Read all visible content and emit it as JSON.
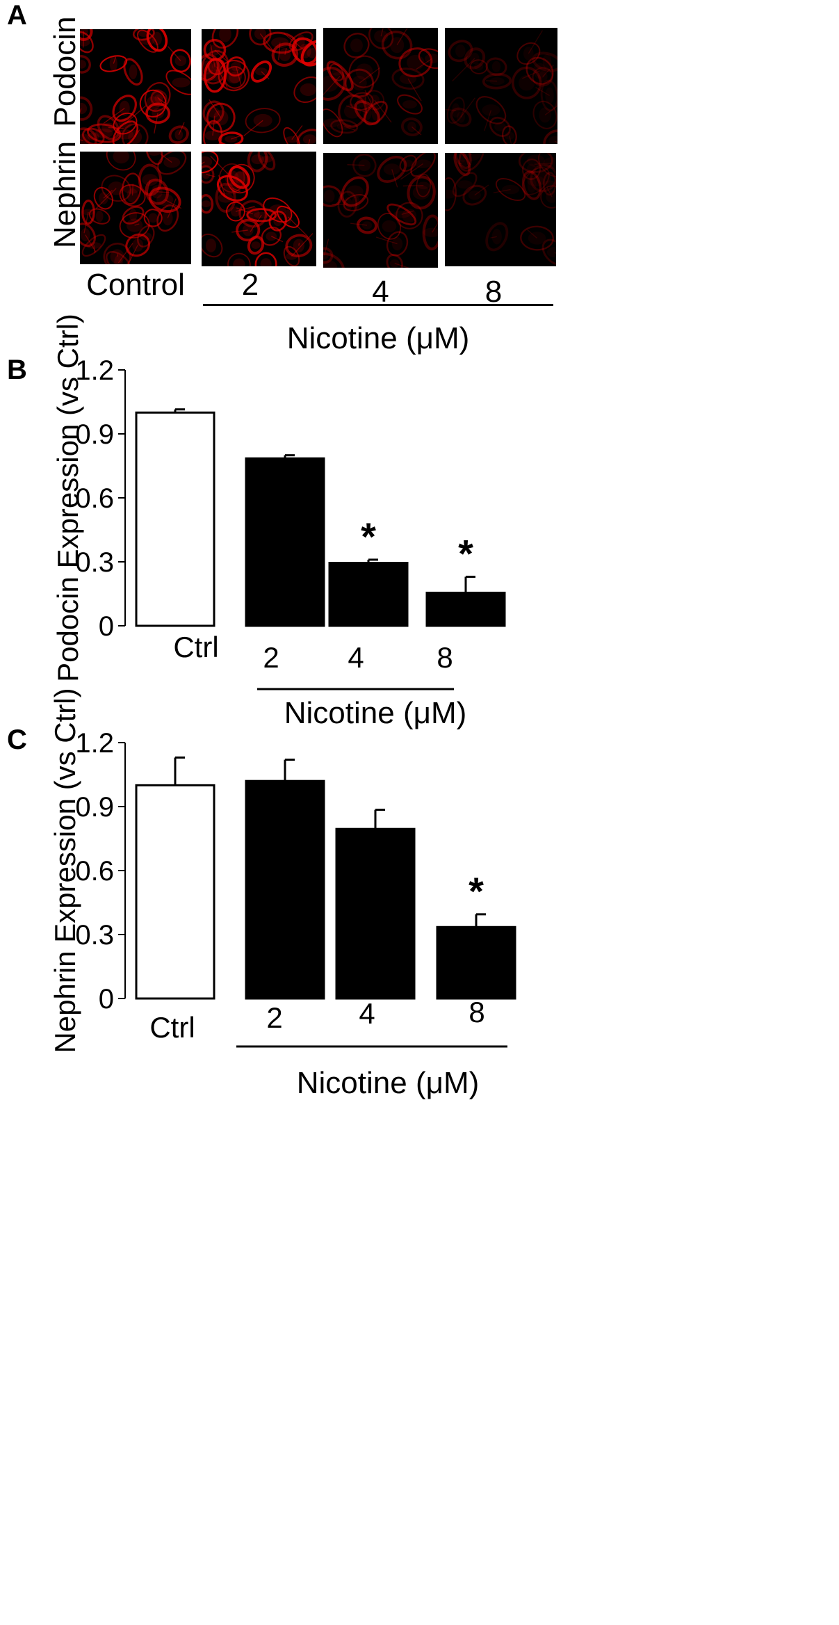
{
  "panels": {
    "a_label": "A",
    "b_label": "B",
    "c_label": "C"
  },
  "microscopy": {
    "row_labels": [
      "Podocin",
      "Nephrin"
    ],
    "conditions": [
      "Control",
      "2",
      "4",
      "8"
    ],
    "group_label": "Nicotine (μM)",
    "stain_color": "#e00000",
    "intensity": [
      [
        1.0,
        0.95,
        0.55,
        0.35
      ],
      [
        0.8,
        0.95,
        0.5,
        0.35
      ]
    ]
  },
  "chart_data": [
    {
      "type": "bar",
      "panel": "B",
      "categories": [
        "Ctrl",
        "2",
        "4",
        "8"
      ],
      "values": [
        1.0,
        0.785,
        0.295,
        0.155
      ],
      "errors": [
        0.015,
        0.015,
        0.015,
        0.075
      ],
      "significance": [
        "",
        "",
        "*",
        "*"
      ],
      "bar_colors": [
        "#ffffff",
        "#000000",
        "#000000",
        "#000000"
      ],
      "ylabel": "Podocin Expression  (vs Ctrl)",
      "yticks": [
        "0",
        "0.3",
        "0.6",
        "0.9",
        "1.2"
      ],
      "ylim": [
        0,
        1.2
      ],
      "group_label": "Nicotine (μM)",
      "grid": false,
      "legend": "none"
    },
    {
      "type": "bar",
      "panel": "C",
      "categories": [
        "Ctrl",
        "2",
        "4",
        "8"
      ],
      "values": [
        1.0,
        1.02,
        0.795,
        0.335
      ],
      "errors": [
        0.13,
        0.1,
        0.09,
        0.06
      ],
      "significance": [
        "",
        "",
        "",
        "*"
      ],
      "bar_colors": [
        "#ffffff",
        "#000000",
        "#000000",
        "#000000"
      ],
      "ylabel": "Nephrin Expression (vs Ctrl)",
      "yticks": [
        "0",
        "0.3",
        "0.6",
        "0.9",
        "1.2"
      ],
      "ylim": [
        0,
        1.2
      ],
      "group_label": "Nicotine (μM)",
      "grid": false,
      "legend": "none"
    }
  ]
}
